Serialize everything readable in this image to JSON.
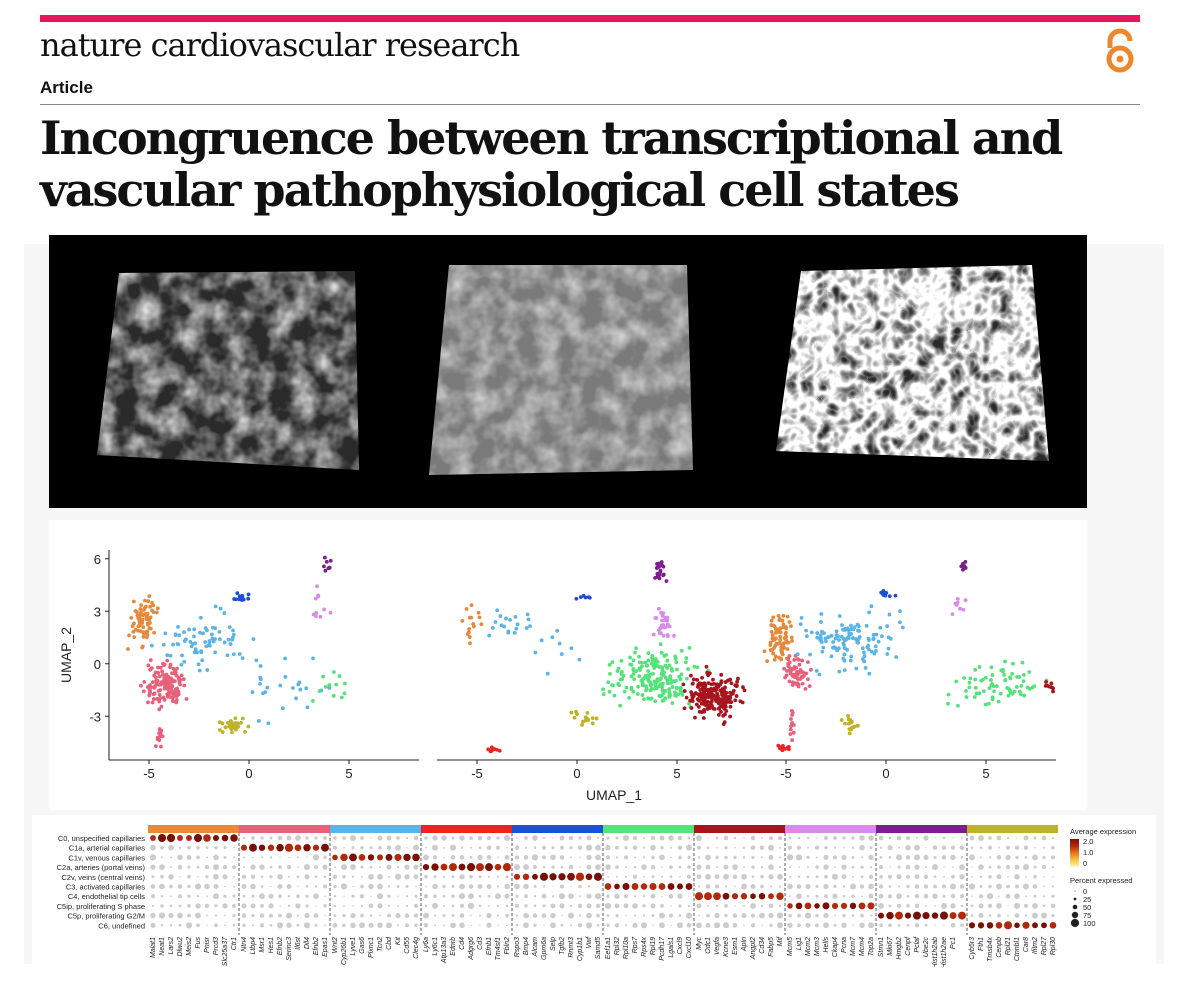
{
  "header": {
    "journal_name": "nature cardiovascular research",
    "article_type": "Article",
    "title_line1": "Incongruence between transcriptional and",
    "title_line2": "vascular pathophysiological cell states",
    "brand_color": "#e8175d",
    "open_access_color": "#f0862a"
  },
  "figure": {
    "microscopy_panels": 3,
    "umap": {
      "xlabel": "UMAP_1",
      "ylabel": "UMAP_2",
      "x_ticks": [
        "-5",
        "0",
        "5"
      ],
      "y_ticks": [
        "6",
        "3",
        "0",
        "-3"
      ]
    },
    "dotplot": {
      "clusters": [
        {
          "label": "C0, unspecified capillaries",
          "color": "#e6893a"
        },
        {
          "label": "C1a, arterial capillaries",
          "color": "#e8607a"
        },
        {
          "label": "C1v, venous capillaries",
          "color": "#5ab4e6"
        },
        {
          "label": "C2a, arteries (portal veins)",
          "color": "#ee2222"
        },
        {
          "label": "C2v, veins (central veins)",
          "color": "#1f4fd6"
        },
        {
          "label": "C3, activated capillaries",
          "color": "#55e27a"
        },
        {
          "label": "C4, endothelial tip cells",
          "color": "#a8141e"
        },
        {
          "label": "C5ip, proliferating S phase",
          "color": "#d98be8"
        },
        {
          "label": "C5p, proliferating G2/M",
          "color": "#7a1f8c"
        },
        {
          "label": "C6, undefined",
          "color": "#bdb324"
        }
      ],
      "gene_groups": [
        [
          "Malat1",
          "Neat1",
          "Lars2",
          "Dlwu2",
          "Meis2",
          "Fus",
          "Pnisr",
          "Prcd3",
          "Slc25a37",
          "Ctr1"
        ],
        [
          "Ntn4",
          "Ltbp4",
          "Msr1",
          "Hes1",
          "Efnb2",
          "Serinc3",
          "Il6st",
          "Dll4",
          "Efnb2",
          "Epas1"
        ],
        [
          "Wnt2",
          "Cyp26b1",
          "Lyve1",
          "Gas6",
          "Plxnc1",
          "Tcn2",
          "Cbd",
          "Kit",
          "Cd55",
          "Clec4g"
        ],
        [
          "Ly6a",
          "Ly6c1",
          "Atp13a3",
          "Ednrb",
          "Cd4",
          "Adgrg6",
          "Cd3",
          "Efnb1",
          "Tm4sf1",
          "Fbln2"
        ],
        [
          "Rspo3",
          "Bmp4",
          "Alcam",
          "Gpm6a",
          "Selp",
          "Tgfb2",
          "Rnmt3",
          "Cyp1b1",
          "Vwf",
          "Samd5"
        ],
        [
          "Eef1a1",
          "Rpl32",
          "Rpl10a",
          "Rps7",
          "Rps4x",
          "Rpl19",
          "Pcdh17",
          "Lgals1",
          "Cxcl9",
          "Cxcl10"
        ],
        [
          "Myc",
          "Odc1",
          "Vegfa",
          "Kcne3",
          "Esm1",
          "Apln",
          "Angpt2",
          "Cd34",
          "Fabp5",
          "Mif"
        ],
        [
          "Mcm5",
          "Lig1",
          "Mcm2",
          "Mcm3",
          "Hells",
          "Ckap4",
          "Pcna",
          "Mcm7",
          "Mcm4",
          "Top2a"
        ],
        [
          "Stmn1",
          "Mki67",
          "Hmgb2",
          "Cenpf",
          "Pclaf",
          "Ube2c",
          "Hist1h2ab",
          "Hist1h2ae",
          "Pc1",
          ""
        ],
        [
          "Cyb5r3",
          "Fth1",
          "Tmsb4x",
          "Cenpb",
          "Rpl21",
          "Ctnnbl1",
          "Car8",
          "Ifitm2",
          "Rpl27",
          "Rpl30"
        ]
      ],
      "legend_expression_title": "Average expression",
      "legend_expression_ticks": [
        "2.0",
        "1.0",
        "0"
      ],
      "legend_percent_title": "Percent expressed",
      "legend_percent_ticks": [
        "0",
        "25",
        "50",
        "75",
        "100"
      ]
    }
  }
}
